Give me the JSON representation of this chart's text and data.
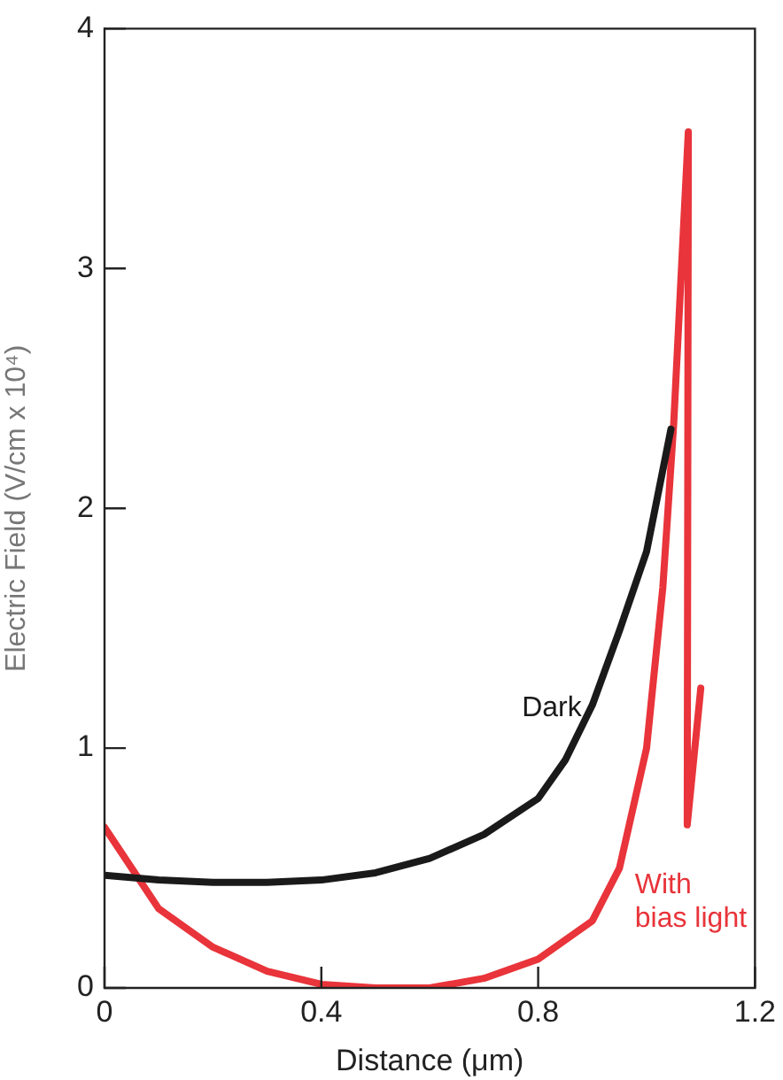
{
  "chart_data": {
    "type": "line",
    "xlabel": "Distance (μm)",
    "ylabel": "Electric Field (V/cm x 10⁴)",
    "xlim": [
      0,
      1.2
    ],
    "xticks": [
      0,
      0.4,
      0.8,
      1.2
    ],
    "ylim": [
      0,
      4
    ],
    "yticks": [
      0,
      1,
      2,
      3,
      4
    ],
    "grid": false,
    "legend": false,
    "marker": "none",
    "line_style": "solid",
    "series": [
      {
        "name": "Dark",
        "color": "#1a1a1a",
        "x": [
          0,
          0.1,
          0.2,
          0.3,
          0.4,
          0.5,
          0.6,
          0.7,
          0.8,
          0.85,
          0.9,
          0.95,
          1.0,
          1.045
        ],
        "values": [
          0.47,
          0.45,
          0.44,
          0.44,
          0.45,
          0.48,
          0.54,
          0.64,
          0.79,
          0.95,
          1.18,
          1.49,
          1.82,
          2.33
        ]
      },
      {
        "name": "With bias light",
        "color": "#e8343a",
        "x": [
          0,
          0.1,
          0.2,
          0.3,
          0.4,
          0.5,
          0.6,
          0.7,
          0.8,
          0.9,
          0.95,
          1.0,
          1.03,
          1.05,
          1.077,
          1.075,
          1.1
        ],
        "values": [
          0.67,
          0.33,
          0.17,
          0.07,
          0.015,
          0,
          0,
          0.04,
          0.12,
          0.28,
          0.5,
          1.0,
          1.67,
          2.35,
          3.57,
          0.68,
          1.25
        ]
      }
    ]
  }
}
